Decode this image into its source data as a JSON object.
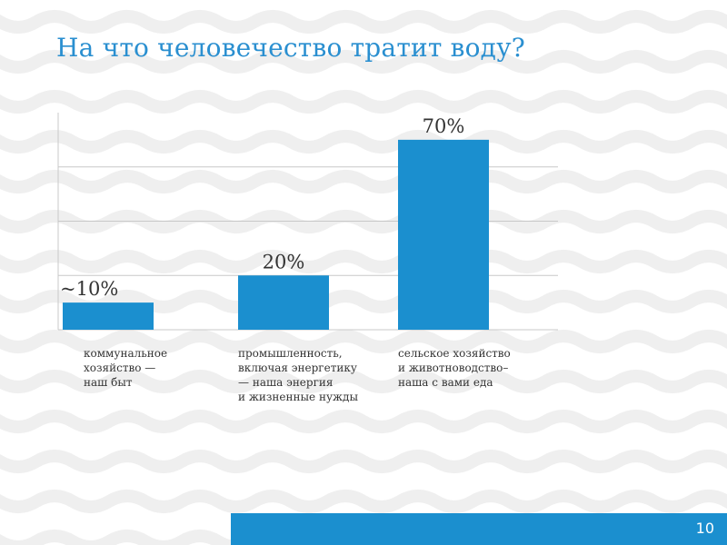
{
  "slide": {
    "title": "На что человечество тратит воду?",
    "page_number": "10"
  },
  "colors": {
    "accent": "#1b8fcf",
    "title": "#2a8fd0",
    "grid": "#c8c8c8",
    "text": "#333333"
  },
  "chart_data": {
    "type": "bar",
    "categories": [
      "коммунальное\nхозяйство —\nнаш быт",
      "промышленность,\nвключая энергетику\n— наша энергия\nи жизненные нужды",
      "сельское хозяйство\nи животноводство–\nнаша с вами еда"
    ],
    "values": [
      10,
      20,
      70
    ],
    "data_labels": [
      "~10%",
      "20%",
      "70%"
    ],
    "ylim": [
      0,
      80
    ],
    "grid": true,
    "legend": "none",
    "bar_color": "#1b8fcf"
  }
}
